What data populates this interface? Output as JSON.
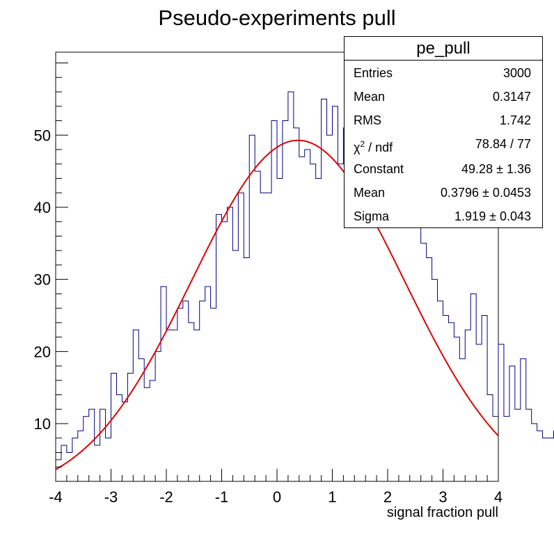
{
  "chart": {
    "title": "Pseudo-experiments pull",
    "xlabel": "signal fraction pull",
    "stats": {
      "name": "pe_pull",
      "rows": [
        {
          "key": "Entries",
          "value": "3000"
        },
        {
          "key": "Mean",
          "value": "0.3147"
        },
        {
          "key": "RMS",
          "value": "1.742"
        },
        {
          "key": "χ² / ndf",
          "value": "78.84 / 77"
        },
        {
          "key": "Constant",
          "value": "49.28 ± 1.36"
        },
        {
          "key": "Mean",
          "value": "0.3796 ± 0.0453"
        },
        {
          "key": "Sigma",
          "value": "1.919 ± 0.043"
        }
      ]
    }
  },
  "chart_data": {
    "type": "histogram",
    "title": "Pseudo-experiments pull",
    "xlabel": "signal fraction pull",
    "ylabel": "",
    "xlim": [
      -4,
      4
    ],
    "ylim": [
      2,
      61.5
    ],
    "x_ticks": [
      "-4",
      "-3",
      "-2",
      "-1",
      "0",
      "1",
      "2",
      "3",
      "4"
    ],
    "y_ticks": [
      "10",
      "20",
      "30",
      "40",
      "50"
    ],
    "grid": false,
    "bin_width": 0.1,
    "bin_edges_start": -4,
    "histogram_color": "#000080",
    "fit_color": "#e00000",
    "histogram_counts": [
      5,
      7,
      6,
      8,
      9,
      11,
      12,
      7,
      12,
      8,
      17,
      14,
      13,
      17,
      23,
      19,
      15,
      16,
      20,
      29,
      23,
      23,
      26,
      27,
      24,
      23,
      27,
      29,
      26,
      39,
      38,
      40,
      34,
      42,
      33,
      50,
      45,
      42,
      42,
      52,
      44,
      52,
      56,
      51,
      47,
      48,
      46,
      44,
      55,
      50,
      54,
      46,
      51,
      55,
      43,
      47,
      41,
      49,
      47,
      47,
      53,
      54,
      38,
      45,
      40,
      44,
      35,
      33,
      30,
      27,
      25,
      24,
      22,
      19,
      23,
      28,
      21,
      25,
      14,
      11,
      21,
      11,
      18,
      12,
      19,
      12,
      10,
      9,
      8,
      8,
      9,
      14,
      11,
      9,
      10,
      8,
      8,
      9,
      10,
      4
    ],
    "fit": {
      "function": "gaus",
      "constant": 49.28,
      "mean": 0.3796,
      "sigma": 1.919
    }
  }
}
